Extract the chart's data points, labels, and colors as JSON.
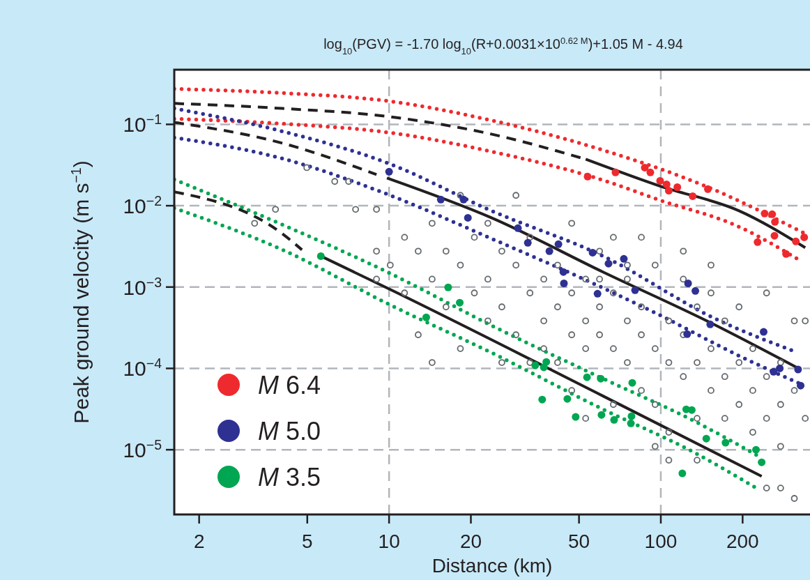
{
  "chart_data": {
    "type": "scatter",
    "title": "log$_{10}$(PGV) = -1.70 log$_{10}$(R+0.0031×10$^{0.62 M}$)+1.05 M - 4.94",
    "xlabel": "Distance (km)",
    "ylabel": "Peak ground velocity (m s$^{−1}$)",
    "log": "xy",
    "xlim": [
      1.62,
      354
    ],
    "ylim": [
      1.6e-06,
      0.47
    ],
    "xticks": [
      2,
      5,
      10,
      20,
      50,
      100,
      200
    ],
    "yticks": [
      {
        "value": 1e-05,
        "label": "10$^{−5}$"
      },
      {
        "value": 0.0001,
        "label": "10$^{−4}$"
      },
      {
        "value": 0.001,
        "label": "10$^{−3}$"
      },
      {
        "value": 0.01,
        "label": "10$^{−2}$"
      },
      {
        "value": 0.1,
        "label": "10$^{−1}$"
      }
    ],
    "grid": "y",
    "legend": "bottom left",
    "ref_lines": [
      {
        "axis": "x",
        "value": 10,
        "color": "#b1b6bc",
        "line_style": "dashed"
      },
      {
        "axis": "x",
        "value": 100,
        "color": "#b1b6bc",
        "line_style": "dashed"
      }
    ],
    "series": [
      {
        "color": "#646a6e",
        "marker": "circle",
        "x": [
          4.98,
          6.31,
          7.1,
          7.53,
          3.82,
          3.2,
          8.99,
          8.99,
          10.1,
          11.4,
          12.8,
          14.4,
          14.4,
          16.2,
          16.2,
          18.3,
          18.3,
          20.6,
          20.6,
          23.1,
          23.1,
          26.0,
          26.0,
          29.3,
          29.3,
          29.3,
          33.0,
          33.0,
          37.1,
          37.1,
          37.1,
          41.7,
          41.7,
          41.7,
          47.0,
          47.0,
          47.0,
          52.9,
          52.9,
          52.9,
          59.5,
          59.5,
          59.5,
          66.9,
          66.9,
          66.9,
          75.3,
          75.3,
          75.3,
          84.8,
          84.8,
          84.8,
          95.3,
          95.3,
          95.3,
          107,
          107,
          107,
          121,
          121,
          121,
          136,
          136,
          136,
          153,
          153,
          153,
          172,
          172,
          172,
          194,
          194,
          194,
          218,
          218,
          218,
          245,
          245,
          245,
          276,
          276,
          276,
          310,
          310,
          340,
          340,
          12.8,
          14.4,
          33.0,
          47.0,
          52.9,
          66.9,
          95.3,
          107,
          136,
          276,
          310,
          245,
          18.3,
          26.0,
          8.99,
          11.4,
          23.1,
          84.8,
          121,
          153,
          75.3,
          59.5
        ],
        "values": [
          0.0294,
          0.0199,
          0.0199,
          0.00902,
          0.00902,
          0.00608,
          0.00902,
          0.00276,
          0.00186,
          0.00409,
          0.00276,
          0.00608,
          0.00125,
          0.00276,
          0.00057,
          0.0134,
          0.00186,
          0.00409,
          0.000846,
          0.00125,
          0.000384,
          0.00276,
          0.00057,
          0.0134,
          0.00186,
          0.000259,
          0.000846,
          0.00409,
          0.00125,
          0.000384,
          0.000175,
          0.00057,
          0.00186,
          0.000118,
          0.000846,
          0.000259,
          0.00608,
          0.00125,
          0.000384,
          0.000175,
          0.00276,
          0.00057,
          0.000259,
          0.000846,
          0.000175,
          0.00409,
          0.000384,
          0.000118,
          0.00125,
          0.00057,
          0.000259,
          5.35e-05,
          0.00186,
          0.000175,
          3.6e-05,
          0.000384,
          0.000118,
          7.44e-06,
          0.00125,
          0.000259,
          7.93e-05,
          0.00057,
          0.000118,
          2.43e-05,
          0.00186,
          0.000175,
          5.35e-05,
          0.000384,
          7.93e-05,
          2.43e-05,
          0.00057,
          0.000118,
          3.6e-05,
          0.000175,
          5.35e-05,
          1.64e-05,
          0.000846,
          7.93e-05,
          2.43e-05,
          0.000118,
          3.6e-05,
          3.38e-06,
          0.000384,
          5.35e-05,
          2.43e-05,
          0.000384,
          0.000259,
          0.000118,
          0.000118,
          5.35e-05,
          2.43e-05,
          3.6e-05,
          1.1e-05,
          1.64e-05,
          7.44e-06,
          1.1e-05,
          2.52e-06,
          3.38e-06,
          0.000175,
          0.000118,
          0.00125,
          0.000846,
          0.00608,
          0.00409,
          0.00276,
          0.000846,
          0.00186,
          0.00125
        ]
      },
      {
        "type": "line",
        "color": "#ee2a2e",
        "line_style": "dotted",
        "x": [
          1.62,
          4.05,
          10.1,
          23.8,
          61.3,
          153,
          340
        ],
        "values": [
          0.273,
          0.243,
          0.192,
          0.112,
          0.0482,
          0.0163,
          0.00452
        ]
      },
      {
        "type": "line",
        "color": "#ee2a2e",
        "line_style": "dotted",
        "x": [
          1.62,
          4.05,
          10.1,
          23.8,
          61.3,
          100,
          194,
          330
        ],
        "values": [
          0.117,
          0.102,
          0.0789,
          0.0464,
          0.0206,
          0.0116,
          0.00551,
          0.00206
        ]
      },
      {
        "type": "line",
        "color": "#231f20",
        "line_style": "dashed",
        "x": [
          1.62,
          4.05,
          10.1,
          23.8,
          52.9
        ],
        "values": [
          0.181,
          0.157,
          0.124,
          0.0759,
          0.0373
        ]
      },
      {
        "type": "line",
        "color": "#231f20",
        "line_style": "solid",
        "x": [
          52.9,
          100,
          194,
          340
        ],
        "values": [
          0.0373,
          0.0173,
          0.00867,
          0.00305
        ]
      },
      {
        "type": "line",
        "color": "#2e3192",
        "line_style": "dotted",
        "x": [
          1.62,
          4.05,
          10.1,
          23.8,
          61.3,
          159,
          316
        ],
        "values": [
          0.157,
          0.0821,
          0.0325,
          0.00867,
          0.0024,
          0.000407,
          0.000158
        ]
      },
      {
        "type": "line",
        "color": "#2e3192",
        "line_style": "dotted",
        "x": [
          1.62,
          4.05,
          9.82,
          23.8,
          57.7,
          97,
          194,
          324
        ],
        "values": [
          0.0687,
          0.038,
          0.0139,
          0.00394,
          0.00107,
          0.000468,
          0.000143,
          6.52e-05
        ]
      },
      {
        "type": "line",
        "color": "#231f20",
        "line_style": "dashed",
        "x": [
          1.62,
          4.05,
          8.99
        ],
        "values": [
          0.106,
          0.0587,
          0.0242
        ]
      },
      {
        "type": "line",
        "color": "#231f20",
        "line_style": "solid",
        "x": [
          9.82,
          23.8,
          61.3,
          153,
          316
        ],
        "values": [
          0.0219,
          0.00711,
          0.00153,
          0.000362,
          0.000103
        ]
      },
      {
        "type": "line",
        "color": "#00a651",
        "line_style": "dotted",
        "x": [
          1.62,
          4.05,
          10.1,
          24.2,
          61.3,
          130,
          231
        ],
        "values": [
          0.021,
          0.00584,
          0.00147,
          0.000328,
          7.48e-05,
          2.33e-05,
          8.2e-06
        ]
      },
      {
        "type": "line",
        "color": "#00a651",
        "line_style": "dotted",
        "x": [
          1.62,
          4.05,
          10.2,
          24.2,
          61.3,
          130,
          231
        ],
        "values": [
          0.00937,
          0.00287,
          0.000593,
          0.000152,
          3.14e-05,
          9.6e-06,
          3.19e-06
        ]
      },
      {
        "type": "line",
        "color": "#231f20",
        "line_style": "dashed",
        "x": [
          1.62,
          4.05,
          4.78
        ],
        "values": [
          0.0148,
          0.00452,
          0.00287
        ]
      },
      {
        "type": "line",
        "color": "#231f20",
        "line_style": "solid",
        "x": [
          5.61,
          10.1,
          61.3,
          235
        ],
        "values": [
          0.0024,
          0.000933,
          4.57e-05,
          4.72e-06
        ]
      },
      {
        "name": "M 6.4",
        "color": "#ee2a2e",
        "marker": "circle",
        "x": [
          53.8,
          68.1,
          87.3,
          91.5,
          99.4,
          105,
          107,
          115,
          131,
          149,
          241,
          257,
          263,
          262,
          227,
          289,
          314,
          337
        ],
        "values": [
          0.0228,
          0.0257,
          0.0294,
          0.0257,
          0.0202,
          0.0183,
          0.0153,
          0.0169,
          0.0131,
          0.016,
          0.00802,
          0.00786,
          0.00632,
          0.00427,
          0.00357,
          0.00255,
          0.00364,
          0.00409
        ]
      },
      {
        "name": "M 5.0",
        "color": "#2e3192",
        "marker": "circle",
        "x": [
          10.0,
          15.5,
          18.8,
          19.5,
          29.8,
          32.4,
          38.9,
          42.0,
          56.1,
          43.8,
          44.0,
          58.5,
          64.2,
          73.1,
          126,
          134,
          80.4,
          152,
          125,
          239,
          260,
          274,
          320,
          327
        ],
        "values": [
          0.0262,
          0.0119,
          0.0119,
          0.00711,
          0.0053,
          0.0035,
          0.00276,
          0.00336,
          0.00265,
          0.00153,
          0.00111,
          0.000829,
          0.00194,
          0.00222,
          0.00111,
          0.000897,
          0.000915,
          0.000348,
          0.000264,
          0.000281,
          9.1e-05,
          0.0001,
          9.7e-05,
          6.14e-05
        ]
      },
      {
        "name": "M 3.5",
        "color": "#00a651",
        "marker": "circle",
        "x": [
          5.61,
          16.5,
          18.2,
          13.7,
          34.5,
          37.9,
          37.1,
          36.6,
          45.3,
          48.6,
          53.5,
          60.1,
          60.5,
          78.5,
          67.3,
          78.0,
          77.6,
          124,
          130,
          147,
          173,
          224,
          235,
          120
        ],
        "values": [
          0.0024,
          0.000991,
          0.000642,
          0.000424,
          0.000109,
          0.00012,
          0.000103,
          4.14e-05,
          4.22e-05,
          2.53e-05,
          7.78e-05,
          7.48e-05,
          2.68e-05,
          6.64e-05,
          2.33e-05,
          2.58e-05,
          2.11e-05,
          3.14e-05,
          3.08e-05,
          1.37e-05,
          1.22e-05,
          1e-05,
          7e-06,
          5.12e-06
        ]
      }
    ]
  }
}
